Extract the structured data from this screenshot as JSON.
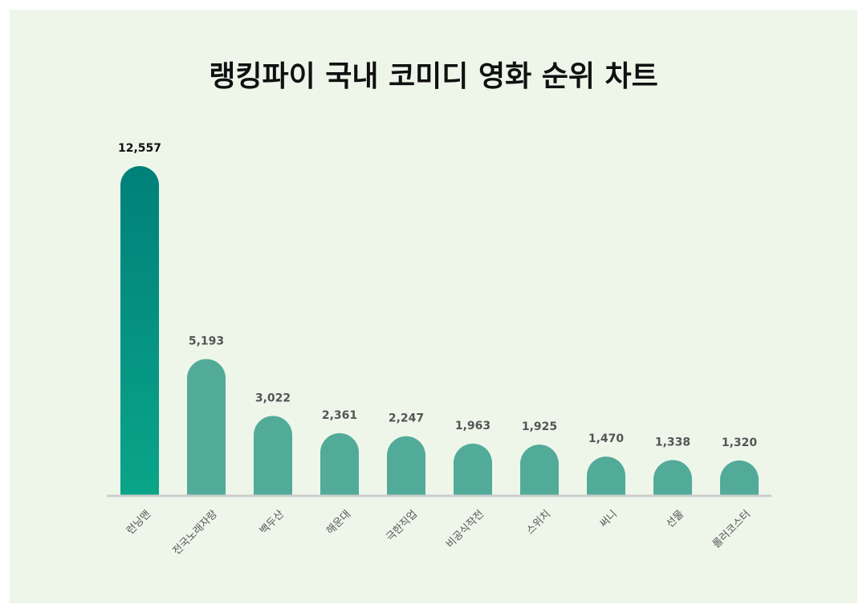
{
  "chart_data": {
    "type": "bar",
    "title": "랭킹파이 국내 코미디 영화 순위 차트",
    "categories": [
      "런닝맨",
      "전국노래자랑",
      "백두산",
      "해운대",
      "극한직업",
      "비공식작전",
      "스위치",
      "써니",
      "선물",
      "롤러코스터"
    ],
    "values": [
      12557,
      5193,
      3022,
      2361,
      2247,
      1963,
      1925,
      1470,
      1338,
      1320
    ],
    "value_labels": [
      "12,557",
      "5,193",
      "3,022",
      "2,361",
      "2,247",
      "1,963",
      "1,925",
      "1,470",
      "1,338",
      "1,320"
    ],
    "xlabel": "",
    "ylabel": "",
    "ylim": [
      0,
      12557
    ],
    "grid": false,
    "colors": {
      "highlight_top": "#00807a",
      "highlight_bottom": "#0aa589",
      "bar": "#52ab98",
      "baseline": "#cccccc",
      "highlight_label": "#111111",
      "label": "#555555"
    }
  }
}
